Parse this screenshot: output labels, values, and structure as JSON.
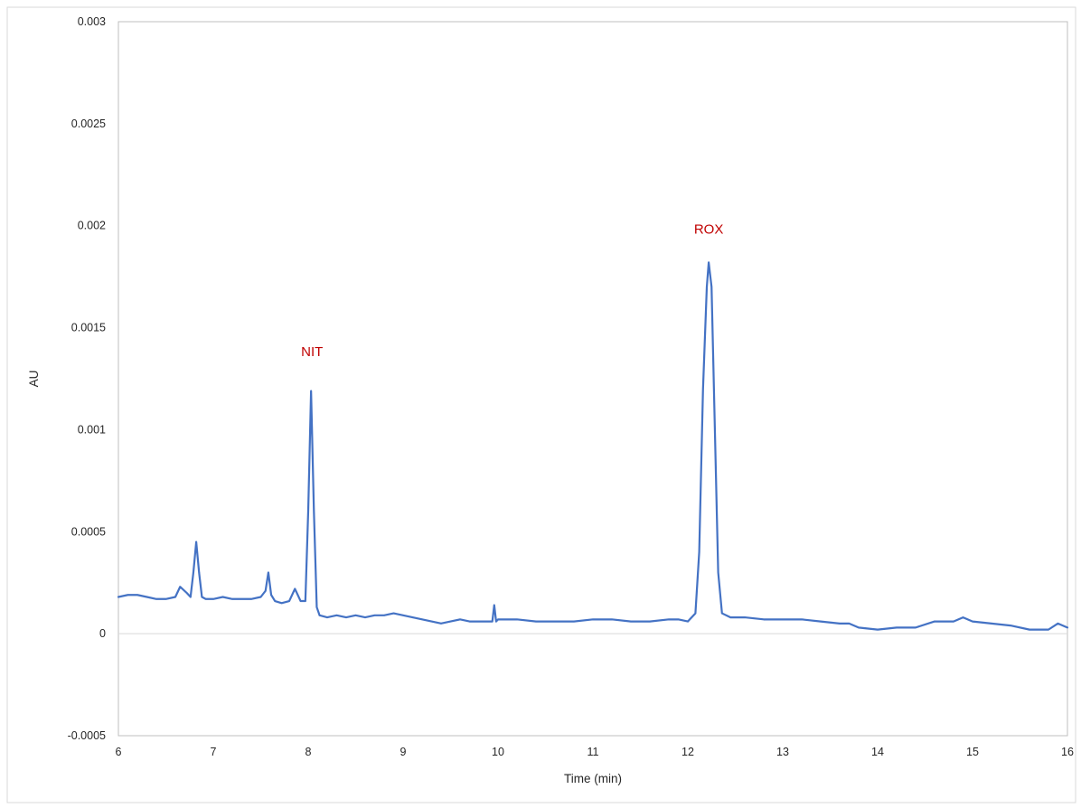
{
  "chart_data": {
    "type": "line",
    "title": "",
    "xlabel": "Time (min)",
    "ylabel": "AU",
    "xlim": [
      6,
      16
    ],
    "ylim": [
      -0.0005,
      0.003
    ],
    "grid": false,
    "legend": "none",
    "x_ticks": [
      6,
      7,
      8,
      9,
      10,
      11,
      12,
      13,
      14,
      15,
      16
    ],
    "y_ticks": [
      -0.0005,
      0,
      0.0005,
      0.001,
      0.0015,
      0.002,
      0.0025,
      0.003
    ],
    "y_tick_labels": [
      "-0.0005",
      "0",
      "0.0005",
      "0.001",
      "0.0015",
      "0.002",
      "0.0025",
      "0.003"
    ],
    "line_color": "#4472c4",
    "annotation_color": "#c00000",
    "annotations": [
      {
        "text": "NIT",
        "x": 8.04,
        "y": 0.00136
      },
      {
        "text": "ROX",
        "x": 12.22,
        "y": 0.00196
      }
    ],
    "series": [
      {
        "x": [
          6.0,
          6.1,
          6.2,
          6.3,
          6.4,
          6.5,
          6.6,
          6.65,
          6.72,
          6.76,
          6.79,
          6.82,
          6.85,
          6.88,
          6.92,
          7.0,
          7.1,
          7.2,
          7.3,
          7.4,
          7.5,
          7.55,
          7.58,
          7.61,
          7.65,
          7.72,
          7.8,
          7.86,
          7.92,
          7.97,
          8.0,
          8.03,
          8.06,
          8.09,
          8.12,
          8.2,
          8.3,
          8.4,
          8.5,
          8.6,
          8.7,
          8.8,
          8.9,
          9.0,
          9.1,
          9.2,
          9.3,
          9.4,
          9.5,
          9.6,
          9.7,
          9.8,
          9.9,
          9.94,
          9.96,
          9.98,
          10.0,
          10.2,
          10.4,
          10.6,
          10.8,
          11.0,
          11.2,
          11.4,
          11.6,
          11.8,
          11.9,
          12.0,
          12.08,
          12.12,
          12.16,
          12.2,
          12.22,
          12.25,
          12.28,
          12.32,
          12.36,
          12.45,
          12.6,
          12.8,
          13.0,
          13.2,
          13.4,
          13.6,
          13.7,
          13.8,
          14.0,
          14.2,
          14.4,
          14.6,
          14.8,
          14.9,
          15.0,
          15.2,
          15.4,
          15.6,
          15.8,
          15.9,
          16.0
        ],
        "y": [
          0.00018,
          0.00019,
          0.00019,
          0.00018,
          0.00017,
          0.00017,
          0.00018,
          0.00023,
          0.0002,
          0.00018,
          0.0003,
          0.00045,
          0.0003,
          0.00018,
          0.00017,
          0.00017,
          0.00018,
          0.00017,
          0.00017,
          0.00017,
          0.00018,
          0.00021,
          0.0003,
          0.00019,
          0.00016,
          0.00015,
          0.00016,
          0.00022,
          0.00016,
          0.00016,
          0.0006,
          0.00119,
          0.0006,
          0.00013,
          9e-05,
          8e-05,
          9e-05,
          8e-05,
          9e-05,
          8e-05,
          9e-05,
          9e-05,
          0.0001,
          9e-05,
          8e-05,
          7e-05,
          6e-05,
          5e-05,
          6e-05,
          7e-05,
          6e-05,
          6e-05,
          6e-05,
          6e-05,
          0.00014,
          6e-05,
          7e-05,
          7e-05,
          6e-05,
          6e-05,
          6e-05,
          7e-05,
          7e-05,
          6e-05,
          6e-05,
          7e-05,
          7e-05,
          6e-05,
          0.0001,
          0.0004,
          0.0012,
          0.0017,
          0.00182,
          0.0017,
          0.0011,
          0.0003,
          0.0001,
          8e-05,
          8e-05,
          7e-05,
          7e-05,
          7e-05,
          6e-05,
          5e-05,
          5e-05,
          3e-05,
          2e-05,
          3e-05,
          3e-05,
          6e-05,
          6e-05,
          8e-05,
          6e-05,
          5e-05,
          4e-05,
          2e-05,
          2e-05,
          5e-05,
          3e-05
        ]
      }
    ]
  }
}
